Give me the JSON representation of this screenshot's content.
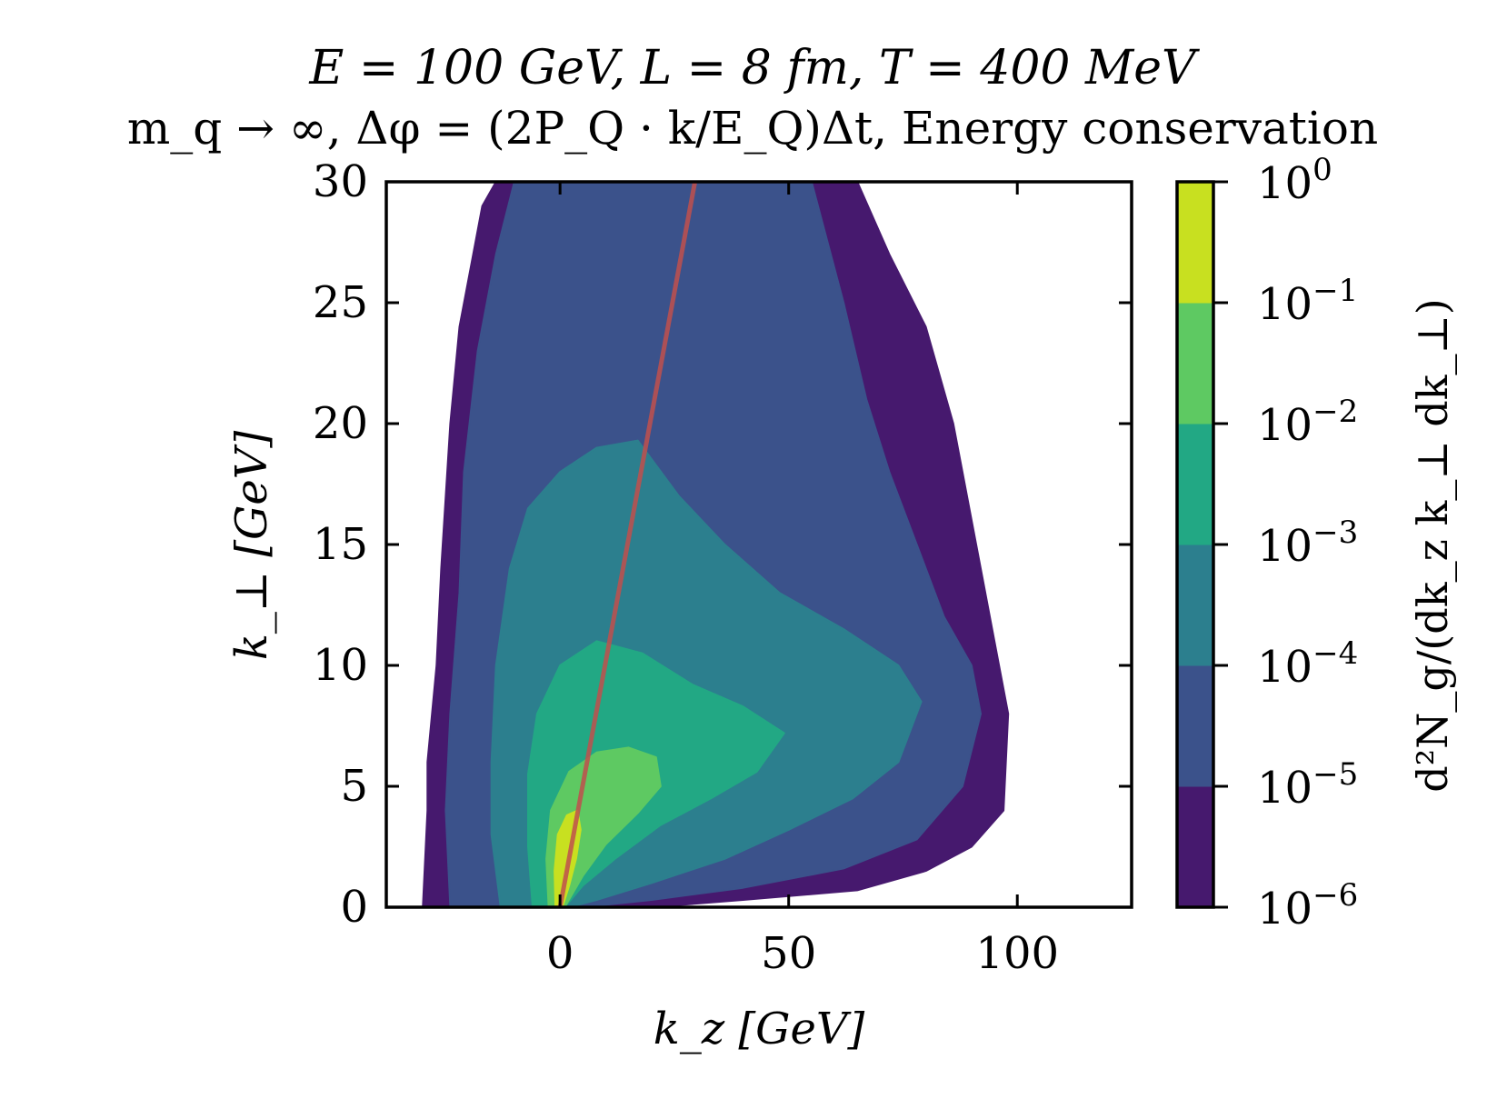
{
  "chart_data": {
    "type": "contour",
    "title_line1": "E = 100 GeV,   L = 8 fm,   T = 400 MeV",
    "title_line2": "m_q → ∞,  Δφ = (2P_Q · k/E_Q)Δt,   Energy conservation",
    "xlabel": "k_z [GeV]",
    "ylabel": "k_⊥ [GeV]",
    "xlim": [
      -38,
      125
    ],
    "ylim": [
      0,
      30
    ],
    "x_ticks": [
      0,
      50,
      100
    ],
    "y_ticks": [
      0,
      5,
      10,
      15,
      20,
      25,
      30
    ],
    "colorbar": {
      "label": "d²N_g/(dk_z k_⊥ dk_⊥)",
      "scale": "log",
      "tick_exponents": [
        0,
        -1,
        -2,
        -3,
        -4,
        -5,
        -6
      ],
      "levels": [
        {
          "range": "1e-6 – 1e-5",
          "color": "#46196e"
        },
        {
          "range": "1e-5 – 1e-4",
          "color": "#3b528b"
        },
        {
          "range": "1e-4 – 1e-3",
          "color": "#2c7f8e"
        },
        {
          "range": "1e-3 – 1e-2",
          "color": "#22a884"
        },
        {
          "range": "1e-2 – 1e-1",
          "color": "#5ec962"
        },
        {
          "range": "1e-1 – 1e0",
          "color": "#c8e020"
        }
      ]
    },
    "contours": [
      {
        "level": "1e-6",
        "color": "#46196e",
        "points": [
          [
            -30,
            0
          ],
          [
            -29,
            4
          ],
          [
            -29,
            6
          ],
          [
            -27,
            10
          ],
          [
            -26,
            14
          ],
          [
            -24,
            20
          ],
          [
            -22,
            24
          ],
          [
            -19,
            27
          ],
          [
            -17,
            29
          ],
          [
            -14,
            30
          ],
          [
            65,
            30
          ],
          [
            72,
            27
          ],
          [
            80,
            24
          ],
          [
            86,
            20
          ],
          [
            91,
            15
          ],
          [
            95,
            11
          ],
          [
            98,
            8
          ],
          [
            97,
            4
          ],
          [
            90,
            2.5
          ],
          [
            80,
            1.5
          ],
          [
            65,
            0.7
          ],
          [
            40,
            0.3
          ],
          [
            20,
            0
          ]
        ]
      },
      {
        "level": "1e-5",
        "color": "#3b528b",
        "points": [
          [
            -24,
            0
          ],
          [
            -25,
            4
          ],
          [
            -24,
            8
          ],
          [
            -22,
            13
          ],
          [
            -21,
            18
          ],
          [
            -18,
            23
          ],
          [
            -14,
            27
          ],
          [
            -10,
            30
          ],
          [
            55,
            30
          ],
          [
            62,
            25
          ],
          [
            67,
            21
          ],
          [
            72,
            18
          ],
          [
            78,
            15
          ],
          [
            84,
            12
          ],
          [
            90,
            10
          ],
          [
            92,
            8
          ],
          [
            88,
            5
          ],
          [
            78,
            2.8
          ],
          [
            62,
            1.6
          ],
          [
            40,
            0.8
          ],
          [
            20,
            0.3
          ],
          [
            5,
            0
          ]
        ]
      },
      {
        "level": "1e-4",
        "color": "#2c7f8e",
        "points": [
          [
            -13,
            0
          ],
          [
            -15,
            3
          ],
          [
            -15,
            6
          ],
          [
            -14,
            10
          ],
          [
            -11,
            14
          ],
          [
            -7,
            16.5
          ],
          [
            0,
            18
          ],
          [
            8,
            19
          ],
          [
            17,
            19.3
          ],
          [
            26,
            17
          ],
          [
            36,
            15
          ],
          [
            48,
            13
          ],
          [
            62,
            11.5
          ],
          [
            74,
            10
          ],
          [
            79,
            8.5
          ],
          [
            74,
            6
          ],
          [
            64,
            4.5
          ],
          [
            50,
            3.2
          ],
          [
            36,
            2.0
          ],
          [
            20,
            1.0
          ],
          [
            8,
            0.3
          ],
          [
            2,
            0
          ]
        ]
      },
      {
        "level": "1e-3",
        "color": "#22a884",
        "points": [
          [
            -6,
            0
          ],
          [
            -7,
            2.5
          ],
          [
            -7,
            5.5
          ],
          [
            -5,
            8
          ],
          [
            0,
            10
          ],
          [
            8,
            11
          ],
          [
            18,
            10.5
          ],
          [
            29,
            9.2
          ],
          [
            40,
            8.3
          ],
          [
            49,
            7.2
          ],
          [
            43,
            5.6
          ],
          [
            33,
            4.5
          ],
          [
            22,
            3.4
          ],
          [
            12,
            2.0
          ],
          [
            5,
            0.9
          ],
          [
            1,
            0
          ]
        ]
      },
      {
        "level": "1e-2",
        "color": "#5ec962",
        "points": [
          [
            -2.5,
            0
          ],
          [
            -3,
            2
          ],
          [
            -2,
            4
          ],
          [
            2,
            5.6
          ],
          [
            8,
            6.4
          ],
          [
            15,
            6.6
          ],
          [
            21,
            6.2
          ],
          [
            22,
            5.0
          ],
          [
            17,
            3.9
          ],
          [
            10,
            2.6
          ],
          [
            5,
            1.3
          ],
          [
            1,
            0
          ]
        ]
      },
      {
        "level": "1e-1",
        "color": "#c8e020",
        "points": [
          [
            -1,
            0
          ],
          [
            -1.2,
            1.5
          ],
          [
            -0.5,
            3
          ],
          [
            1.5,
            3.8
          ],
          [
            3.8,
            4.0
          ],
          [
            4.5,
            3.2
          ],
          [
            3.5,
            2.0
          ],
          [
            2,
            0.9
          ],
          [
            0.5,
            0
          ]
        ]
      }
    ],
    "reference_line": {
      "color": "#c0504d",
      "x": [
        0,
        29.5
      ],
      "y": [
        0,
        30
      ]
    }
  }
}
